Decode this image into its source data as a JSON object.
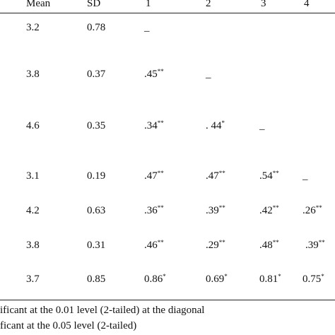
{
  "table": {
    "headers": [
      "Mean",
      "SD",
      "1",
      "2",
      "3",
      "4"
    ],
    "rows": [
      {
        "mean": "3.2",
        "sd": "0.78",
        "c1": "_",
        "c1s": "",
        "c2": "",
        "c2s": "",
        "c3": "",
        "c3s": "",
        "c4": "",
        "c4s": ""
      },
      {
        "mean": "3.8",
        "sd": "0.37",
        "c1": ".45",
        "c1s": "**",
        "c2": "_",
        "c2s": "",
        "c3": "",
        "c3s": "",
        "c4": "",
        "c4s": ""
      },
      {
        "mean": "4.6",
        "sd": "0.35",
        "c1": ".34",
        "c1s": "**",
        "c2": ". 44",
        "c2s": "*",
        "c3": "_",
        "c3s": "",
        "c4": "",
        "c4s": ""
      },
      {
        "mean": "3.1",
        "sd": "0.19",
        "c1": ".47",
        "c1s": "**",
        "c2": ".47",
        "c2s": "**",
        "c3": ".54",
        "c3s": "**",
        "c4": "_",
        "c4s": ""
      },
      {
        "mean": "4.2",
        "sd": "0.63",
        "c1": ".36",
        "c1s": "**",
        "c2": ".39",
        "c2s": "**",
        "c3": ".42",
        "c3s": "**",
        "c4": ".26",
        "c4s": "**"
      },
      {
        "mean": "3.8",
        "sd": "0.31",
        "c1": ".46",
        "c1s": "**",
        "c2": ".29",
        "c2s": "**",
        "c3": ".48",
        "c3s": "**",
        "c4": ".39",
        "c4s": "**"
      },
      {
        "mean": "3.7",
        "sd": "0.85",
        "c1": "0.86",
        "c1s": "*",
        "c2": "0.69",
        "c2s": "*",
        "c3": "0.81",
        "c3s": "*",
        "c4": "0.75",
        "c4s": "*"
      }
    ]
  },
  "notes": [
    "ificant at the 0.01 level (2-tailed) at the diagonal",
    "ficant at the 0.05 level (2-tailed)"
  ]
}
